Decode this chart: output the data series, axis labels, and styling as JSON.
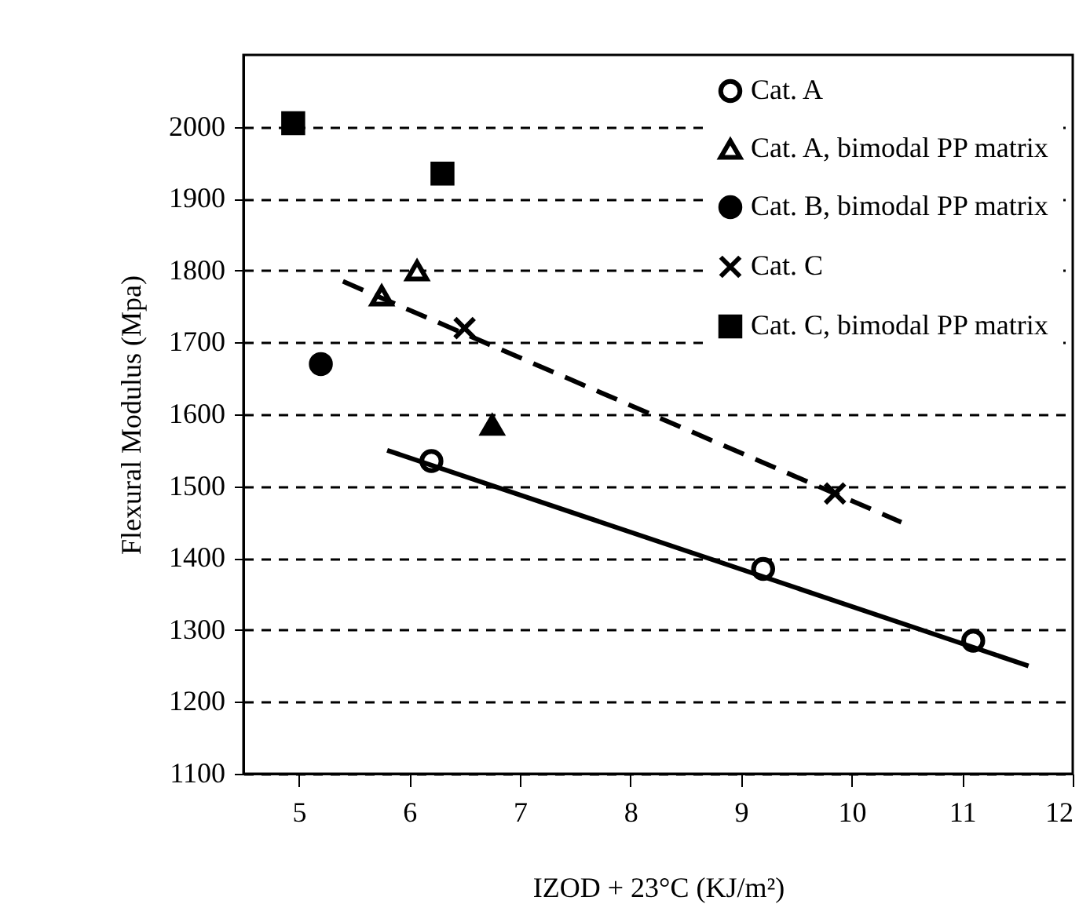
{
  "chart_data": {
    "type": "scatter",
    "xlabel": "IZOD + 23°C (KJ/m²)",
    "ylabel": "Flexural Modulus (Mpa)",
    "xlim": [
      4.5,
      12
    ],
    "xticks": [
      5,
      6,
      7,
      8,
      9,
      10,
      11,
      12
    ],
    "ylim": [
      1100,
      2100
    ],
    "yticks": [
      1100,
      1200,
      1300,
      1400,
      1500,
      1600,
      1700,
      1800,
      1900,
      2000
    ],
    "grid": "y",
    "legend": "top right",
    "series": [
      {
        "name": "Cat. A",
        "marker": "circle",
        "color": "#ffffff",
        "x": [
          6.2,
          9.2,
          11.1
        ],
        "values": [
          1535,
          1385,
          1285
        ]
      },
      {
        "name": "Cat. A, bimodal PP matrix",
        "marker": "triangle",
        "color": "#ffffff",
        "x": [
          5.75,
          6.07
        ],
        "values": [
          1765,
          1800
        ]
      },
      {
        "marker": "triangle",
        "color": "#000000",
        "x": [
          6.75
        ],
        "values": [
          1585
        ]
      },
      {
        "name": "Cat. B, bimodal PP matrix",
        "marker": "circle",
        "color": "#000000",
        "x": [
          5.2
        ],
        "values": [
          1670
        ]
      },
      {
        "name": "Cat. C",
        "marker": "cross",
        "color": "#000000",
        "x": [
          6.5,
          9.85
        ],
        "values": [
          1720,
          1490
        ]
      },
      {
        "name": "Cat. C, bimodal PP matrix",
        "marker": "square",
        "color": "#000000",
        "x": [
          4.95,
          6.3
        ],
        "values": [
          2005,
          1935
        ]
      },
      {
        "type": "line",
        "line_style": "solid",
        "color": "#000000",
        "x": [
          5.8,
          11.6
        ],
        "values": [
          1550,
          1250
        ]
      },
      {
        "type": "line",
        "line_style": "dashed",
        "color": "#000000",
        "x": [
          5.4,
          10.45
        ],
        "values": [
          1785,
          1450
        ]
      }
    ]
  }
}
